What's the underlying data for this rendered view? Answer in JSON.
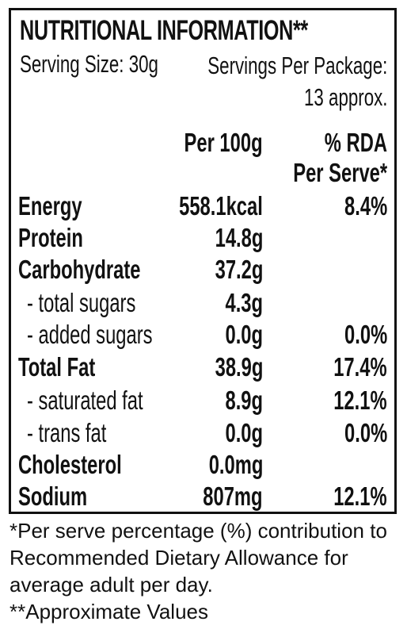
{
  "panel": {
    "title": "NUTRITIONAL INFORMATION**",
    "serving_size": "Serving Size: 30g",
    "servings_per_package_line1": "Servings Per Package:",
    "servings_per_package_line2": "13 approx.",
    "col_per100": "Per 100g",
    "col_rda_line1": "% RDA",
    "col_rda_line2": "Per Serve*"
  },
  "rows": [
    {
      "label": "Energy",
      "per100": "558.1kcal",
      "rda": "8.4%"
    },
    {
      "label": "Protein",
      "per100": "14.8g",
      "rda": ""
    },
    {
      "label": "Carbohydrate",
      "per100": "37.2g",
      "rda": ""
    },
    {
      "label": "- total sugars",
      "per100": "4.3g",
      "rda": ""
    },
    {
      "label": "- added sugars",
      "per100": "0.0g",
      "rda": "0.0%"
    },
    {
      "label": "Total Fat",
      "per100": "38.9g",
      "rda": "17.4%"
    },
    {
      "label": "- saturated fat",
      "per100": "8.9g",
      "rda": "12.1%"
    },
    {
      "label": "- trans fat",
      "per100": "0.0g",
      "rda": "0.0%"
    },
    {
      "label": "Cholesterol",
      "per100": "0.0mg",
      "rda": ""
    },
    {
      "label": "Sodium",
      "per100": "807mg",
      "rda": "12.1%"
    }
  ],
  "footnotes": {
    "line1": "*Per serve percentage (%) contribution to",
    "line2": "Recommended Dietary Allowance for",
    "line3": "average adult per day.",
    "line4": "**Approximate Values"
  }
}
